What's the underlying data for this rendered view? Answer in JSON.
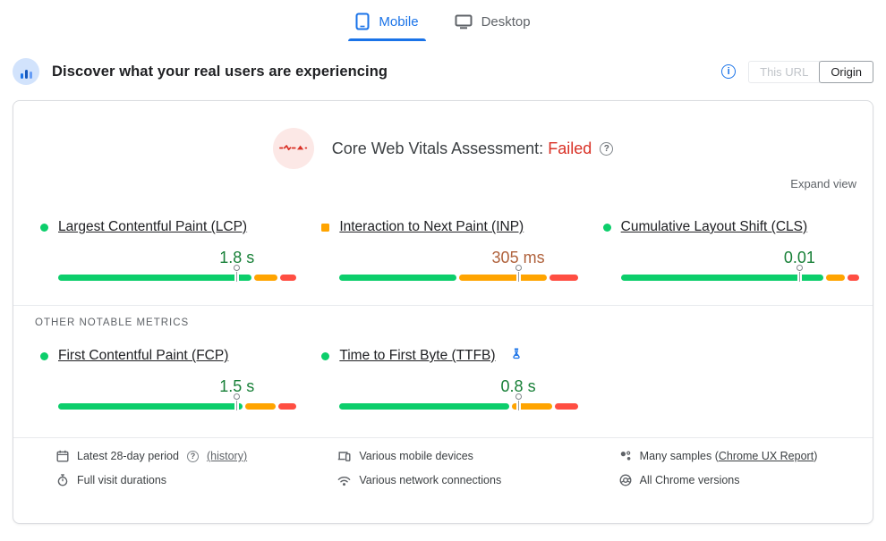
{
  "tabs": {
    "mobile": {
      "label": "Mobile"
    },
    "desktop": {
      "label": "Desktop"
    }
  },
  "header": {
    "title": "Discover what your real users are experiencing",
    "toggle": {
      "this_url": "This URL",
      "origin": "Origin"
    }
  },
  "assessment": {
    "title": "Core Web Vitals Assessment:",
    "result": "Failed"
  },
  "expand_view_label": "Expand view",
  "core_metrics": [
    {
      "id": "lcp",
      "label": "Largest Contentful Paint (LCP)",
      "value": "1.8 s",
      "status": "good",
      "distribution": {
        "good": 83,
        "average": 10,
        "poor": 7
      },
      "marker_percent": 75
    },
    {
      "id": "inp",
      "label": "Interaction to Next Paint (INP)",
      "value": "305 ms",
      "status": "average",
      "distribution": {
        "good": 50,
        "average": 38,
        "poor": 12
      },
      "marker_percent": 75
    },
    {
      "id": "cls",
      "label": "Cumulative Layout Shift (CLS)",
      "value": "0.01",
      "status": "good",
      "distribution": {
        "good": 87,
        "average": 8,
        "poor": 5
      },
      "marker_percent": 75
    }
  ],
  "other_metrics_heading": "OTHER NOTABLE METRICS",
  "other_metrics": [
    {
      "id": "fcp",
      "label": "First Contentful Paint (FCP)",
      "value": "1.5 s",
      "status": "good",
      "distribution": {
        "good": 79,
        "average": 13,
        "poor": 8
      },
      "marker_percent": 75
    },
    {
      "id": "ttfb",
      "label": "Time to First Byte (TTFB)",
      "value": "0.8 s",
      "status": "good",
      "experimental": true,
      "distribution": {
        "good": 73,
        "average": 17,
        "poor": 10
      },
      "marker_percent": 75
    }
  ],
  "footer": {
    "period": {
      "label": "Latest 28-day period",
      "history_link": "(history)"
    },
    "durations": {
      "label": "Full visit durations"
    },
    "devices": {
      "label": "Various mobile devices"
    },
    "network": {
      "label": "Various network connections"
    },
    "samples": {
      "prefix": "Many samples (",
      "link": "Chrome UX Report",
      "suffix": ")"
    },
    "versions": {
      "label": "All Chrome versions"
    }
  },
  "colors": {
    "good_bar": "#0cce6b",
    "average_bar": "#ffa400",
    "poor_bar": "#ff4e42",
    "good_text": "#188038",
    "average_text": "#b0623c",
    "failed": "#d93025",
    "accent": "#1a73e8"
  }
}
